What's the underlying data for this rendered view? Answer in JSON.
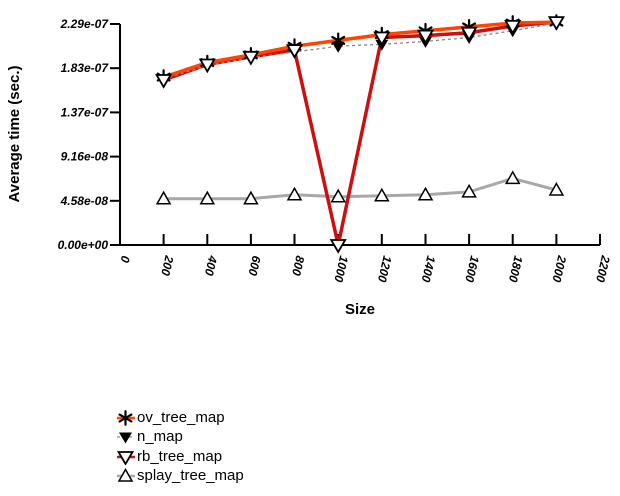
{
  "chart_data": {
    "type": "line",
    "title": "",
    "xlabel": "Size",
    "ylabel": "Average time (sec.)",
    "xlim": [
      0,
      2200
    ],
    "ylim": [
      0,
      2.29e-07
    ],
    "grid": false,
    "legend_position": "bottom-left",
    "background": "#ffffff",
    "x": [
      200,
      400,
      600,
      800,
      1000,
      1200,
      1400,
      1600,
      1800,
      2000
    ],
    "xticks": [
      0,
      200,
      400,
      600,
      800,
      1000,
      1200,
      1400,
      1600,
      1800,
      2000,
      2200
    ],
    "yticks": [
      {
        "label": "0.00e+00",
        "value": 0
      },
      {
        "label": "4.58e-08",
        "value": 4.58e-08
      },
      {
        "label": "9.16e-08",
        "value": 9.16e-08
      },
      {
        "label": "1.37e-07",
        "value": 1.374e-07
      },
      {
        "label": "1.83e-07",
        "value": 1.832e-07
      },
      {
        "label": "2.29e-07",
        "value": 2.29e-07
      }
    ],
    "series": [
      {
        "name": "ov_tree_map",
        "marker": "asterisk",
        "marker_color": "#000000",
        "line_color": "#ff4500",
        "line_width": 3.5,
        "line_dash": "",
        "values": [
          1.74e-07,
          1.89e-07,
          1.97e-07,
          2.06e-07,
          2.12e-07,
          2.18e-07,
          2.22e-07,
          2.26e-07,
          2.3e-07,
          2.31e-07
        ]
      },
      {
        "name": "n_map",
        "marker": "triangle-down-filled",
        "marker_color": "#000000",
        "line_color": "#888888",
        "line_width": 1.3,
        "line_dash": "3 3",
        "values": [
          1.72e-07,
          1.86e-07,
          1.94e-07,
          2e-07,
          2.06e-07,
          2.08e-07,
          2.11e-07,
          2.15e-07,
          2.22e-07,
          2.3e-07
        ]
      },
      {
        "name": "rb_tree_map",
        "marker": "triangle-down-open",
        "marker_color": "#000000",
        "line_color": "#cc1010",
        "line_width": 3.5,
        "line_dash": "",
        "values": [
          1.71e-07,
          1.87e-07,
          1.95e-07,
          2.02e-07,
          0,
          2.15e-07,
          2.17e-07,
          2.2e-07,
          2.27e-07,
          2.31e-07
        ]
      },
      {
        "name": "splay_tree_map",
        "marker": "triangle-up-open",
        "marker_color": "#000000",
        "line_color": "#a8a8a8",
        "line_width": 3,
        "line_dash": "",
        "values": [
          4.8e-08,
          4.8e-08,
          4.8e-08,
          5.2e-08,
          5e-08,
          5.1e-08,
          5.2e-08,
          5.5e-08,
          6.9e-08,
          5.7e-08
        ]
      }
    ]
  }
}
